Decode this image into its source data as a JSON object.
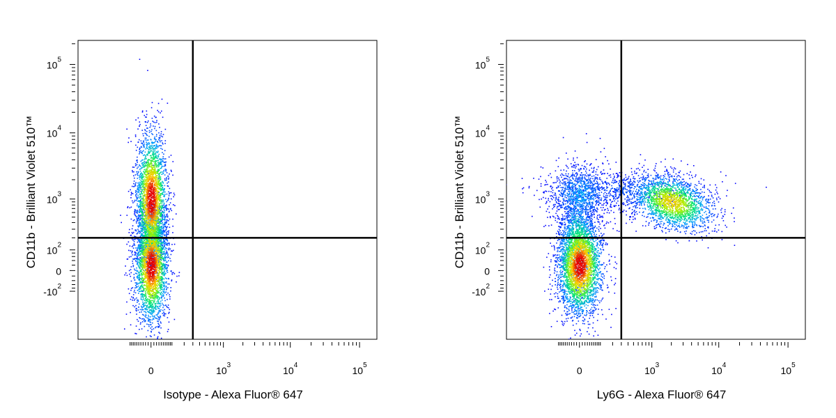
{
  "chart_data": [
    {
      "type": "scatter",
      "subtype": "flow-cytometry-density",
      "xlabel": "Isotype - Alexa Fluor® 647",
      "ylabel": "CD11b - Brilliant Violet 510™",
      "x_scale": "biexponential",
      "y_scale": "biexponential",
      "x_ticks": [
        {
          "base": "",
          "exp": "",
          "plain": "0"
        },
        {
          "base": "10",
          "exp": "3"
        },
        {
          "base": "10",
          "exp": "4"
        },
        {
          "base": "10",
          "exp": "5"
        }
      ],
      "y_ticks": [
        {
          "base": "10",
          "exp": "5"
        },
        {
          "base": "10",
          "exp": "4"
        },
        {
          "base": "10",
          "exp": "3"
        },
        {
          "base": "10",
          "exp": "2"
        },
        {
          "base": "",
          "exp": "",
          "plain": "0"
        },
        {
          "base": "-10",
          "exp": "2"
        }
      ],
      "quadrant_gate": {
        "x": 300,
        "y": 200
      },
      "populations": [
        {
          "x_center": 0,
          "y_center": 1000,
          "density": "high"
        },
        {
          "x_center": 0,
          "y_center": 20,
          "density": "high"
        }
      ],
      "grid": false,
      "legend": "none",
      "colors": {
        "low": "#0000ff",
        "mid": "#00ff00",
        "high": "#ff0000"
      }
    },
    {
      "type": "scatter",
      "subtype": "flow-cytometry-density",
      "xlabel": "Ly6G - Alexa Fluor® 647",
      "ylabel": "CD11b - Brilliant Violet 510™",
      "x_scale": "biexponential",
      "y_scale": "biexponential",
      "x_ticks": [
        {
          "base": "",
          "exp": "",
          "plain": "0"
        },
        {
          "base": "10",
          "exp": "3"
        },
        {
          "base": "10",
          "exp": "4"
        },
        {
          "base": "10",
          "exp": "5"
        }
      ],
      "y_ticks": [
        {
          "base": "10",
          "exp": "5"
        },
        {
          "base": "10",
          "exp": "4"
        },
        {
          "base": "10",
          "exp": "3"
        },
        {
          "base": "10",
          "exp": "2"
        },
        {
          "base": "",
          "exp": "",
          "plain": "0"
        },
        {
          "base": "-10",
          "exp": "2"
        }
      ],
      "quadrant_gate": {
        "x": 300,
        "y": 200
      },
      "populations": [
        {
          "x_center": 0,
          "y_center": 20,
          "density": "high"
        },
        {
          "x_center": 0,
          "y_center": 1000,
          "density": "low"
        },
        {
          "x_center": 2000,
          "y_center": 900,
          "density": "medium"
        }
      ],
      "grid": false,
      "legend": "none",
      "colors": {
        "low": "#0000ff",
        "mid": "#00ff00",
        "high": "#ff0000"
      }
    }
  ]
}
